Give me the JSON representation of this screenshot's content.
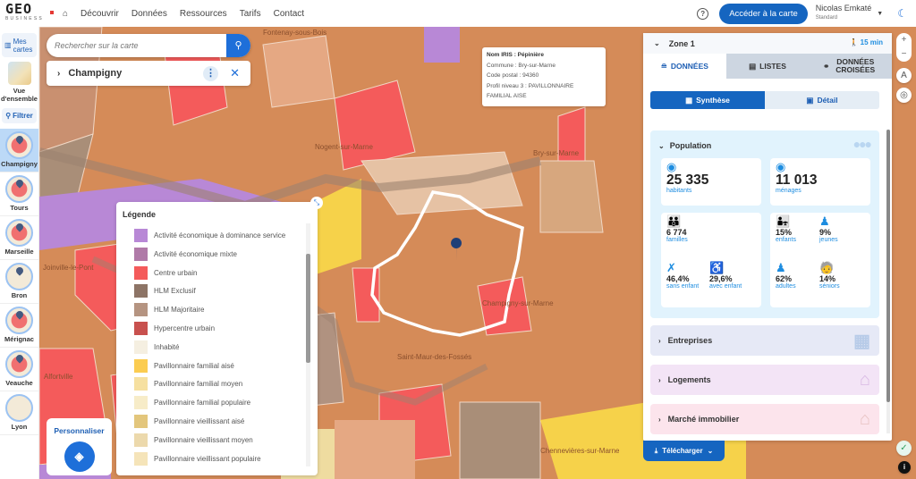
{
  "brand": {
    "logo": "GEO",
    "sub": "BUSINESS"
  },
  "nav": {
    "items": [
      "Découvrir",
      "Données",
      "Ressources",
      "Tarifs",
      "Contact"
    ],
    "access_label": "Accéder à la carte",
    "user_name": "Nicolas Emkaté",
    "user_plan": "Standard"
  },
  "sidebar": {
    "mes_cartes": "Mes cartes",
    "vue": "Vue d'ensemble",
    "filtrer": "Filtrer",
    "cities": [
      "Champigny",
      "Tours",
      "Marseille",
      "Bron",
      "Mérignac",
      "Veauche",
      "Lyon"
    ],
    "active": "Champigny"
  },
  "search": {
    "placeholder": "Rechercher sur la carte"
  },
  "place": {
    "name": "Champigny"
  },
  "tooltip": {
    "lines": [
      "Nom IRIS : Pépinière",
      "Commune : Bry-sur-Marne",
      "Code postal : 94360",
      "Profil niveau 3 : PAVILLONNAIRE",
      "FAMILIAL AISE"
    ]
  },
  "map_labels": [
    "Fontenay-sous-Bois",
    "Nogent-sur-Marne",
    "Bry-sur-Marne",
    "Champigny-sur-Marne",
    "Saint-Maur-des-Fossés",
    "Alfortville",
    "Chennevières-sur-Marne",
    "Joinville-le-Pont"
  ],
  "legend": {
    "title": "Légende",
    "items": [
      {
        "label": "Activité économique à dominance service",
        "color": "#b888d6"
      },
      {
        "label": "Activité économique mixte",
        "color": "#b07aa8"
      },
      {
        "label": "Centre urbain",
        "color": "#f45b5b"
      },
      {
        "label": "HLM Exclusif",
        "color": "#8d7466"
      },
      {
        "label": "HLM Majoritaire",
        "color": "#b59481"
      },
      {
        "label": "Hypercentre urbain",
        "color": "#c8514e"
      },
      {
        "label": "Inhabité",
        "color": "#f5efe1"
      },
      {
        "label": "Pavillonnaire familial aisé",
        "color": "#fbcc50"
      },
      {
        "label": "Pavillonnaire familial moyen",
        "color": "#f6e0a0"
      },
      {
        "label": "Pavillonnaire familial populaire",
        "color": "#f7ecc8"
      },
      {
        "label": "Pavillonnaire vieillissant aisé",
        "color": "#e3c67c"
      },
      {
        "label": "Pavillonnaire vieillissant moyen",
        "color": "#ecd9ac"
      },
      {
        "label": "Pavillonnaire vieillissant populaire",
        "color": "#f5e4b9"
      }
    ]
  },
  "personnaliser": "Personnaliser",
  "panel": {
    "zone": "Zone 1",
    "walk": "15 min",
    "tabs": [
      "DONNÉES",
      "LISTES",
      "DONNÉES CROISÉES"
    ],
    "seg": [
      "Synthèse",
      "Détail"
    ],
    "population": {
      "title": "Population",
      "habitants": "25 335",
      "habitants_label": "habitants",
      "menages": "11 013",
      "menages_label": "ménages",
      "familles": "6 774",
      "familles_label": "familles",
      "sans_enfant": "46,4%",
      "sans_enfant_label": "sans enfant",
      "avec_enfant": "29,6%",
      "avec_enfant_label": "avec enfant",
      "enfants": "15%",
      "enfants_label": "enfants",
      "jeunes": "9%",
      "jeunes_label": "jeunes",
      "adultes": "62%",
      "adultes_label": "adultes",
      "seniors": "14%",
      "seniors_label": "séniors"
    },
    "sections": [
      "Entreprises",
      "Logements",
      "Marché immobilier"
    ],
    "download": "Télécharger"
  },
  "colors": {
    "accent": "#1565c0",
    "population_bg": "#e1f3fd",
    "entreprises_bg": "#e6e9f6",
    "logements_bg": "#f3e4f6",
    "marche_bg": "#fce4ec"
  }
}
